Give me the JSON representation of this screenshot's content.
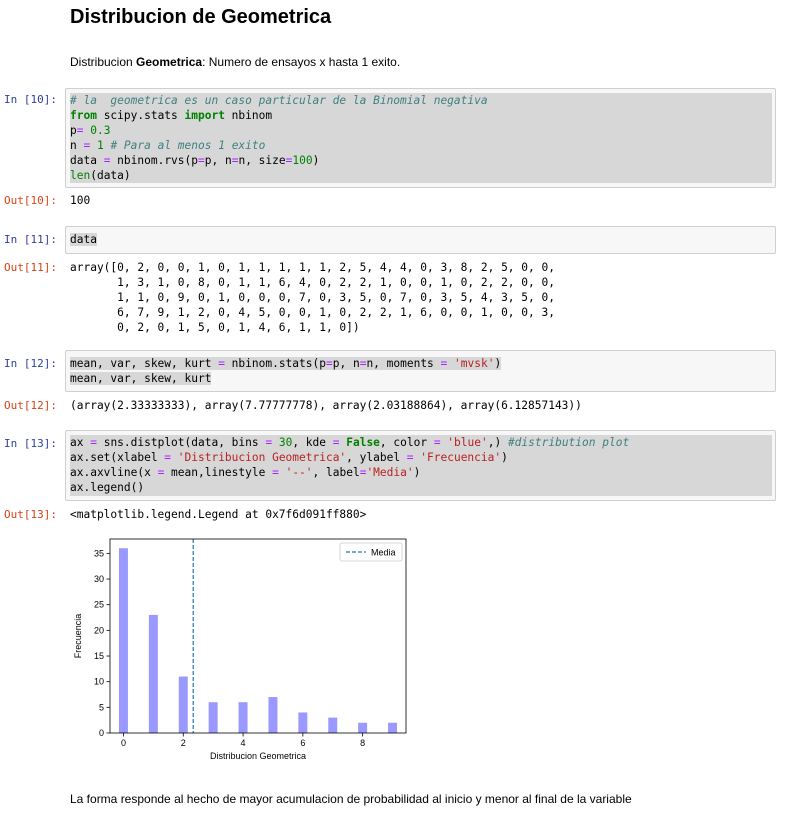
{
  "notebook": {
    "title": "Distribucion de Geometrica",
    "description_prefix": "Distribucion ",
    "description_bold": "Geometrica",
    "description_suffix": ": Numero de ensayos x hasta 1 exito.",
    "footer": "La forma responde al hecho de mayor acumulacion de probabilidad al inicio y menor al final de la variable"
  },
  "cells": {
    "c10": {
      "in_prompt": "In [10]:",
      "out_prompt": "Out[10]:",
      "line1": "# la  geometrica es un caso particular de la Binomial negativa",
      "line2_kw1": "from",
      "line2_mid": " scipy.stats ",
      "line2_kw2": "import",
      "line2_end": " nbinom",
      "line3_a": "p",
      "line3_op": "=",
      "line3_num": " 0.3",
      "line4_a": "n ",
      "line4_op": "=",
      "line4_num": " 1",
      "line4_cm": " # Para al menos 1 exito",
      "line5_a": "data ",
      "line5_op1": "=",
      "line5_b": " nbinom.rvs(p",
      "line5_op2": "=",
      "line5_c": "p, n",
      "line5_op3": "=",
      "line5_d": "n, size",
      "line5_op4": "=",
      "line5_num": "100",
      "line5_e": ")",
      "line6_fn": "len",
      "line6_rest": "(data)",
      "output": "100"
    },
    "c11": {
      "in_prompt": "In [11]:",
      "out_prompt": "Out[11]:",
      "code": "data",
      "output": "array([0, 2, 0, 0, 1, 0, 1, 1, 1, 1, 1, 2, 5, 4, 4, 0, 3, 8, 2, 5, 0, 0,\n       1, 3, 1, 0, 8, 0, 1, 1, 6, 4, 0, 2, 2, 1, 0, 0, 1, 0, 2, 2, 0, 0,\n       1, 1, 0, 9, 0, 1, 0, 0, 0, 7, 0, 3, 5, 0, 7, 0, 3, 5, 4, 3, 5, 0,\n       6, 7, 9, 1, 2, 0, 4, 5, 0, 0, 1, 0, 2, 2, 1, 6, 0, 0, 1, 0, 0, 3,\n       0, 2, 0, 1, 5, 0, 1, 4, 6, 1, 1, 0])"
    },
    "c12": {
      "in_prompt": "In [12]:",
      "out_prompt": "Out[12]:",
      "l1_a": "mean, var, skew, kurt ",
      "l1_op1": "=",
      "l1_b": " nbinom.stats(p",
      "l1_op2": "=",
      "l1_c": "p, n",
      "l1_op3": "=",
      "l1_d": "n, moments ",
      "l1_op4": "=",
      "l1_str": " 'mvsk'",
      "l1_e": ")",
      "l2": "mean, var, skew, kurt",
      "output": "(array(2.33333333), array(7.77777778), array(2.03188864), array(6.12857143))"
    },
    "c13": {
      "in_prompt": "In [13]:",
      "out_prompt": "Out[13]:",
      "l1_a": "ax ",
      "l1_op1": "=",
      "l1_b": " sns.distplot(data, bins ",
      "l1_op2": "=",
      "l1_num": " 30",
      "l1_c": ", kde ",
      "l1_op3": "=",
      "l1_kw": " False",
      "l1_d": ", color ",
      "l1_op4": "=",
      "l1_str": " 'blue'",
      "l1_e": ",) ",
      "l1_cm": "#distribution plot",
      "l2_a": "ax.set(xlabel ",
      "l2_op1": "=",
      "l2_s1": " 'Distribucion Geometrica'",
      "l2_b": ", ylabel ",
      "l2_op2": "=",
      "l2_s2": " 'Frecuencia'",
      "l2_c": ")",
      "l3_a": "ax.axvline(x ",
      "l3_op1": "=",
      "l3_b": " mean,linestyle ",
      "l3_op2": "=",
      "l3_s1": " '--'",
      "l3_c": ", label",
      "l3_op3": "=",
      "l3_s2": "'Media'",
      "l3_d": ")",
      "l4": "ax.legend()",
      "output": "<matplotlib.legend.Legend at 0x7f6d091ff880>"
    }
  },
  "chart_data": {
    "type": "bar",
    "xlabel": "Distribucion Geometrica",
    "ylabel": "Frecuencia",
    "x": [
      0,
      1,
      2,
      3,
      4,
      5,
      6,
      7,
      8,
      9
    ],
    "values": [
      36,
      23,
      11,
      6,
      6,
      7,
      4,
      3,
      2,
      2
    ],
    "bar_color": "#9999ff",
    "mean_line": {
      "x": 2.3333,
      "label": "Media",
      "color": "#1f77b4",
      "linestyle": "dashed"
    },
    "xlim": [
      -0.45,
      9.45
    ],
    "ylim": [
      0,
      37.8
    ],
    "xticks": [
      0,
      2,
      4,
      6,
      8
    ],
    "xtick_labels": [
      "0",
      "2",
      "4",
      "6",
      "8"
    ],
    "yticks": [
      0,
      5,
      10,
      15,
      20,
      25,
      30,
      35
    ],
    "ytick_labels": [
      "0",
      "5",
      "10",
      "15",
      "20",
      "25",
      "30",
      "35"
    ],
    "legend_position": "top-right",
    "grid": false
  }
}
